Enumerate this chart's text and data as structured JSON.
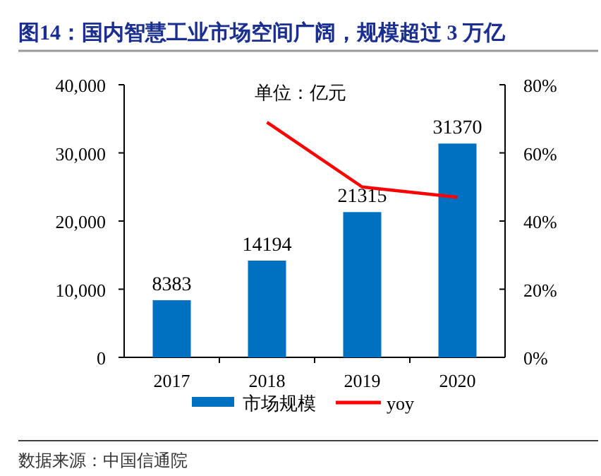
{
  "chart_data": {
    "type": "bar",
    "title": "图14：国内智慧工业市场空间广阔，规模超过 3 万亿",
    "categories": [
      "2017",
      "2018",
      "2019",
      "2020"
    ],
    "series": [
      {
        "name": "市场规模",
        "color": "#0070c0",
        "values": [
          8383,
          14194,
          21315,
          31370
        ],
        "value_labels": [
          "8383",
          "14194",
          "21315",
          "31370"
        ]
      },
      {
        "name": "yoy",
        "type": "line",
        "axis": "y2",
        "color": "#ff0000",
        "values": [
          null,
          69,
          50,
          47
        ]
      }
    ],
    "ylim": [
      0,
      40000
    ],
    "yticks": [
      {
        "value": 0,
        "label": "0"
      },
      {
        "value": 10000,
        "label": "10,000"
      },
      {
        "value": 20000,
        "label": "20,000"
      },
      {
        "value": 30000,
        "label": "30,000"
      },
      {
        "value": 40000,
        "label": "40,000"
      }
    ],
    "y2lim": [
      0,
      80
    ],
    "y2ticks": [
      {
        "value": 0,
        "label": "0%"
      },
      {
        "value": 20,
        "label": "20%"
      },
      {
        "value": 40,
        "label": "40%"
      },
      {
        "value": 60,
        "label": "60%"
      },
      {
        "value": 80,
        "label": "80%"
      }
    ],
    "annotations": [
      "单位：亿元",
      "数据来源：中国信通院"
    ],
    "legend": "bottom",
    "grid": false,
    "marker": "none"
  }
}
